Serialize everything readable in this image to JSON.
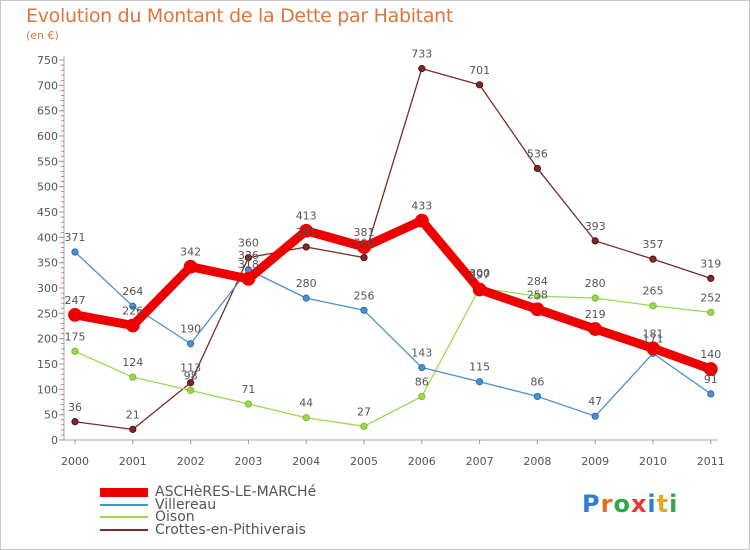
{
  "header": {
    "title": "Evolution du Montant de la Dette par Habitant",
    "subtitle": "(en €)"
  },
  "logo": {
    "text": "Proxiti",
    "letters": [
      "P",
      "r",
      "o",
      "x",
      "i",
      "t",
      "i"
    ],
    "colors": [
      "#2f7fd1",
      "#e86b1f",
      "#2fa84a",
      "#e83a2f",
      "#2f7fd1",
      "#e8a51f",
      "#2fa84a"
    ]
  },
  "chart_data": {
    "type": "line",
    "x": [
      "2000",
      "2001",
      "2002",
      "2003",
      "2004",
      "2005",
      "2006",
      "2007",
      "2008",
      "2009",
      "2010",
      "2011"
    ],
    "ylim": [
      0,
      750
    ],
    "yticks": [
      0,
      50,
      100,
      150,
      200,
      250,
      300,
      350,
      400,
      450,
      500,
      550,
      600,
      650,
      700,
      750
    ],
    "grid": false,
    "legend_position": "bottom-left",
    "series": [
      {
        "name": "Crottes-en-Pithiverais",
        "color": "#7a2a2a",
        "values": [
          36,
          21,
          113,
          360,
          381,
          360,
          733,
          701,
          536,
          393,
          357,
          319
        ],
        "labels": [
          "36",
          "21",
          "113",
          "360",
          "381",
          "360",
          "733",
          "701",
          "536",
          "393",
          "357",
          "319"
        ],
        "emphasis": false
      },
      {
        "name": "Oison",
        "color": "#9ad94f",
        "values": [
          175,
          124,
          98,
          71,
          44,
          27,
          86,
          300,
          284,
          280,
          265,
          252
        ],
        "labels": [
          "175",
          "124",
          "98",
          "71",
          "44",
          "27",
          "86",
          "300",
          "284",
          "280",
          "265",
          "252"
        ],
        "emphasis": false
      },
      {
        "name": "Villereau",
        "color": "#4a8fcf",
        "values": [
          371,
          264,
          190,
          336,
          280,
          256,
          143,
          115,
          86,
          47,
          171,
          91
        ],
        "labels": [
          "371",
          "264",
          "190",
          "336",
          "280",
          "256",
          "143",
          "115",
          "86",
          "47",
          "171",
          "91"
        ],
        "emphasis": false
      },
      {
        "name": "ASCHèRES-LE-MARCHé",
        "color": "#ee0000",
        "values": [
          247,
          226,
          342,
          318,
          413,
          381,
          433,
          297,
          258,
          219,
          181,
          140
        ],
        "labels": [
          "247",
          "226",
          "342",
          "318",
          "413",
          "381",
          "433",
          "297",
          "258",
          "219",
          "181",
          "140"
        ],
        "emphasis": true
      }
    ],
    "legend_order": [
      "ASCHèRES-LE-MARCHé",
      "Villereau",
      "Oison",
      "Crottes-en-Pithiverais"
    ]
  }
}
